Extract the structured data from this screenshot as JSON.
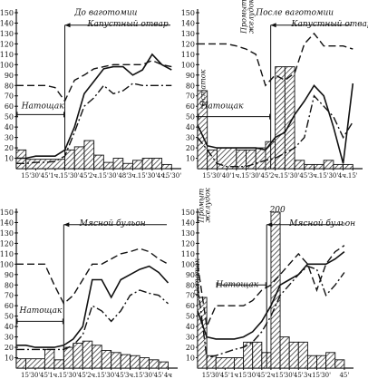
{
  "chart_data": [
    {
      "type": "bar",
      "ylim": [
        0,
        150
      ],
      "yticks": [
        10,
        20,
        30,
        40,
        50,
        60,
        70,
        80,
        90,
        100,
        110,
        120,
        130,
        140,
        150
      ],
      "ytick_labels": [
        "10",
        "20",
        "30",
        "40",
        "50",
        "60",
        "70",
        "80",
        "90",
        "100",
        "110",
        "120",
        "130",
        "140",
        "150"
      ],
      "xticks": [
        15,
        30,
        45,
        60,
        75,
        90,
        105,
        120,
        135,
        150,
        165,
        180,
        195,
        210,
        225,
        240
      ],
      "xtick_labels": [
        "15'",
        "30'",
        "45'",
        "1ч.",
        "15'",
        "30'",
        "45'",
        "2ч.",
        "15'",
        "30'",
        "48'",
        "3ч.",
        "15'",
        "30'",
        "4ч.",
        "15'30'"
      ],
      "xlim": [
        0,
        255
      ],
      "annotations": [
        {
          "text": "До ваготомии",
          "x": 90,
          "y": 148
        },
        {
          "text": "Капустный отвар",
          "x": 110,
          "y": 137
        },
        {
          "text": "Натощак",
          "x": 8,
          "y": 58
        }
      ],
      "stimulus_x": 75,
      "fast_bracket": [
        0,
        75,
        52
      ],
      "bars": [
        {
          "x0": 0,
          "x1": 15,
          "value": 18
        },
        {
          "x0": 15,
          "x1": 75,
          "value": 9
        },
        {
          "x0": 75,
          "x1": 90,
          "value": 18
        },
        {
          "x0": 90,
          "x1": 105,
          "value": 21
        },
        {
          "x0": 105,
          "x1": 120,
          "value": 27
        },
        {
          "x0": 120,
          "x1": 135,
          "value": 13
        },
        {
          "x0": 135,
          "x1": 150,
          "value": 6
        },
        {
          "x0": 150,
          "x1": 165,
          "value": 10
        },
        {
          "x0": 165,
          "x1": 180,
          "value": 5
        },
        {
          "x0": 180,
          "x1": 195,
          "value": 8
        },
        {
          "x0": 195,
          "x1": 210,
          "value": 10
        },
        {
          "x0": 210,
          "x1": 225,
          "value": 10
        },
        {
          "x0": 225,
          "x1": 240,
          "value": 4
        }
      ],
      "series": [
        {
          "style": "dashed",
          "x": [
            0,
            15,
            30,
            45,
            60,
            75,
            90,
            105,
            120,
            135,
            150,
            165,
            180,
            195,
            210,
            225,
            240
          ],
          "values": [
            80,
            80,
            80,
            80,
            78,
            65,
            85,
            90,
            96,
            98,
            100,
            100,
            100,
            100,
            104,
            100,
            98
          ]
        },
        {
          "style": "solid",
          "x": [
            0,
            15,
            30,
            45,
            60,
            75,
            90,
            105,
            120,
            135,
            150,
            165,
            180,
            195,
            210,
            225,
            240
          ],
          "values": [
            10,
            10,
            12,
            12,
            12,
            18,
            40,
            72,
            84,
            96,
            98,
            98,
            90,
            95,
            110,
            100,
            95
          ]
        },
        {
          "style": "dashdot",
          "x": [
            0,
            15,
            30,
            45,
            60,
            75,
            90,
            105,
            120,
            135,
            150,
            165,
            180,
            195,
            210,
            225,
            240
          ],
          "values": [
            5,
            5,
            6,
            6,
            7,
            12,
            35,
            60,
            68,
            80,
            72,
            75,
            82,
            80,
            80,
            80,
            80
          ]
        }
      ]
    },
    {
      "type": "bar",
      "ylim": [
        0,
        150
      ],
      "yticks": [
        10,
        20,
        30,
        40,
        50,
        60,
        70,
        80,
        90,
        100,
        110,
        120,
        130,
        140,
        150
      ],
      "ytick_labels": [
        "10",
        "20",
        "30",
        "40",
        "50",
        "60",
        "70",
        "80",
        "90",
        "100",
        "110",
        "120",
        "130",
        "140",
        "150"
      ],
      "xticks": [
        15,
        30,
        45,
        60,
        75,
        90,
        105,
        120,
        135,
        150,
        165,
        180,
        195,
        210,
        225,
        240
      ],
      "xtick_labels": [
        "15'",
        "30'",
        "40'",
        "1ч.",
        "15'",
        "30'",
        "45'",
        "2ч.",
        "15'",
        "30'",
        "45'",
        "3ч.",
        "15'",
        "30'",
        "4ч.",
        "15'"
      ],
      "xlim": [
        0,
        255
      ],
      "annotations": [
        {
          "text": "После ваготомии",
          "x": 90,
          "y": 148
        },
        {
          "text": "Капустный отвар",
          "x": 145,
          "y": 137
        },
        {
          "text": "Натощак",
          "x": 5,
          "y": 58
        },
        {
          "text": "Остаток",
          "x": 12,
          "y": 60,
          "rotate": -90
        },
        {
          "text": "Промыт",
          "x": 75,
          "y": 130,
          "rotate": -90
        },
        {
          "text": "желудок",
          "x": 86,
          "y": 130,
          "rotate": -90
        }
      ],
      "stimulus_x": 113,
      "fast_bracket": [
        0,
        113,
        50
      ],
      "bars": [
        {
          "x0": 0,
          "x1": 15,
          "value": 75
        },
        {
          "x0": 15,
          "x1": 30,
          "value": 18
        },
        {
          "x0": 30,
          "x1": 60,
          "value": 20
        },
        {
          "x0": 60,
          "x1": 75,
          "value": 18
        },
        {
          "x0": 75,
          "x1": 90,
          "value": 18
        },
        {
          "x0": 90,
          "x1": 105,
          "value": 20
        },
        {
          "x0": 105,
          "x1": 120,
          "value": 26
        },
        {
          "x0": 120,
          "x1": 135,
          "value": 98
        },
        {
          "x0": 135,
          "x1": 150,
          "value": 98
        },
        {
          "x0": 150,
          "x1": 165,
          "value": 8
        },
        {
          "x0": 165,
          "x1": 180,
          "value": 4
        },
        {
          "x0": 180,
          "x1": 195,
          "value": 4
        },
        {
          "x0": 195,
          "x1": 210,
          "value": 8
        },
        {
          "x0": 210,
          "x1": 225,
          "value": 4
        },
        {
          "x0": 225,
          "x1": 240,
          "value": 4
        }
      ],
      "series": [
        {
          "style": "dashed",
          "x": [
            0,
            15,
            30,
            45,
            60,
            75,
            90,
            105,
            120,
            135,
            150,
            165,
            180,
            195,
            210,
            225,
            240
          ],
          "values": [
            120,
            120,
            120,
            120,
            118,
            115,
            110,
            80,
            90,
            85,
            92,
            120,
            130,
            118,
            118,
            118,
            115
          ]
        },
        {
          "style": "solid",
          "x": [
            0,
            15,
            30,
            45,
            60,
            75,
            90,
            105,
            120,
            135,
            150,
            165,
            180,
            195,
            210,
            225,
            240
          ],
          "values": [
            42,
            22,
            20,
            20,
            20,
            20,
            20,
            18,
            30,
            35,
            52,
            65,
            80,
            70,
            40,
            5,
            82
          ]
        },
        {
          "style": "dashdot",
          "x": [
            0,
            15,
            30,
            45,
            60,
            75,
            90,
            105,
            120,
            135,
            150,
            165,
            180,
            195,
            210,
            225,
            240
          ],
          "values": [
            30,
            18,
            5,
            2,
            2,
            2,
            5,
            8,
            10,
            15,
            20,
            30,
            70,
            60,
            50,
            30,
            45
          ]
        }
      ]
    },
    {
      "type": "bar",
      "ylim": [
        0,
        150
      ],
      "yticks": [
        10,
        20,
        30,
        40,
        50,
        60,
        70,
        80,
        90,
        100,
        110,
        120,
        130,
        140,
        150
      ],
      "ytick_labels": [
        "10",
        "20",
        "30",
        "40",
        "50",
        "60",
        "70",
        "80",
        "90",
        "100",
        "110",
        "120",
        "130",
        "140",
        "150"
      ],
      "xticks": [
        15,
        30,
        45,
        60,
        75,
        90,
        105,
        120,
        135,
        150,
        165,
        180,
        195,
        210,
        225,
        240
      ],
      "xtick_labels": [
        "15'",
        "30'",
        "45'",
        "1ч.",
        "15'",
        "30'",
        "45'",
        "2ч.",
        "15'",
        "30'",
        "45'",
        "3ч.",
        "15'",
        "30'",
        "45'",
        "4ч"
      ],
      "xlim": [
        0,
        255
      ],
      "annotations": [
        {
          "text": "Мясной бульон",
          "x": 100,
          "y": 137
        },
        {
          "text": "Натощак",
          "x": 5,
          "y": 53
        }
      ],
      "stimulus_x": 75,
      "fast_bracket": [
        0,
        75,
        45
      ],
      "bars": [
        {
          "x0": 0,
          "x1": 15,
          "value": 9
        },
        {
          "x0": 15,
          "x1": 45,
          "value": 9
        },
        {
          "x0": 45,
          "x1": 60,
          "value": 18
        },
        {
          "x0": 60,
          "x1": 75,
          "value": 8
        },
        {
          "x0": 75,
          "x1": 90,
          "value": 20
        },
        {
          "x0": 90,
          "x1": 105,
          "value": 24
        },
        {
          "x0": 105,
          "x1": 120,
          "value": 26
        },
        {
          "x0": 120,
          "x1": 135,
          "value": 22
        },
        {
          "x0": 135,
          "x1": 150,
          "value": 17
        },
        {
          "x0": 150,
          "x1": 165,
          "value": 15
        },
        {
          "x0": 165,
          "x1": 180,
          "value": 13
        },
        {
          "x0": 180,
          "x1": 195,
          "value": 12
        },
        {
          "x0": 195,
          "x1": 210,
          "value": 10
        },
        {
          "x0": 210,
          "x1": 225,
          "value": 8
        },
        {
          "x0": 225,
          "x1": 240,
          "value": 6
        }
      ],
      "series": [
        {
          "style": "dashed",
          "x": [
            0,
            15,
            30,
            45,
            60,
            75,
            90,
            105,
            120,
            135,
            150,
            165,
            180,
            195,
            210,
            225,
            240
          ],
          "values": [
            100,
            100,
            100,
            100,
            80,
            62,
            70,
            85,
            100,
            100,
            105,
            110,
            112,
            115,
            112,
            105,
            100
          ]
        },
        {
          "style": "solid",
          "x": [
            0,
            15,
            30,
            45,
            60,
            75,
            90,
            105,
            120,
            135,
            150,
            165,
            180,
            195,
            210,
            225,
            240
          ],
          "values": [
            22,
            22,
            20,
            20,
            20,
            22,
            28,
            40,
            85,
            85,
            68,
            85,
            90,
            95,
            98,
            92,
            82
          ]
        },
        {
          "style": "dashdot",
          "x": [
            0,
            15,
            30,
            45,
            60,
            75,
            90,
            105,
            120,
            135,
            150,
            165,
            180,
            195,
            210,
            225,
            240
          ],
          "values": [
            18,
            18,
            18,
            18,
            18,
            18,
            22,
            32,
            60,
            55,
            45,
            55,
            70,
            75,
            72,
            70,
            62
          ]
        }
      ]
    },
    {
      "type": "bar",
      "ylim": [
        0,
        150
      ],
      "yticks": [
        10,
        20,
        30,
        40,
        50,
        60,
        70,
        80,
        90,
        100,
        110,
        120,
        130,
        140,
        150
      ],
      "ytick_labels": [
        "10",
        "20",
        "30",
        "40",
        "50",
        "60",
        "70",
        "80",
        "90",
        "100",
        "110",
        "120",
        "130",
        "140",
        "150"
      ],
      "xticks": [
        15,
        30,
        45,
        60,
        75,
        90,
        105,
        120,
        135,
        150,
        165,
        180,
        195,
        210,
        225,
        240
      ],
      "xtick_labels": [
        "15'",
        "30'",
        "45'",
        "1ч",
        "15'",
        "30'",
        "45'",
        "2ч",
        "15'",
        "30'",
        "45'",
        "3ч",
        "15'",
        "30'",
        "",
        "45'"
      ],
      "xlim": [
        0,
        255
      ],
      "annotations": [
        {
          "text": "Мясной бульон",
          "x": 150,
          "y": 137
        },
        {
          "text": "Натощак",
          "x": 30,
          "y": 78
        },
        {
          "text": "200",
          "x": 118,
          "y": 150
        },
        {
          "text": "Остаток",
          "x": 3,
          "y": 70,
          "rotate": -90
        },
        {
          "text": "Промыт",
          "x": 10,
          "y": 140,
          "rotate": -90
        },
        {
          "text": "желудок",
          "x": 20,
          "y": 140,
          "rotate": -90
        }
      ],
      "stimulus_x": 113,
      "fast_bracket": [
        30,
        113,
        80
      ],
      "bars": [
        {
          "x0": 0,
          "x1": 15,
          "value": 68
        },
        {
          "x0": 15,
          "x1": 30,
          "value": 12
        },
        {
          "x0": 30,
          "x1": 60,
          "value": 10
        },
        {
          "x0": 60,
          "x1": 75,
          "value": 10
        },
        {
          "x0": 75,
          "x1": 90,
          "value": 25
        },
        {
          "x0": 90,
          "x1": 105,
          "value": 25
        },
        {
          "x0": 105,
          "x1": 120,
          "value": 15
        },
        {
          "x0": 120,
          "x1": 135,
          "value": 150
        },
        {
          "x0": 135,
          "x1": 150,
          "value": 30
        },
        {
          "x0": 150,
          "x1": 165,
          "value": 25
        },
        {
          "x0": 165,
          "x1": 180,
          "value": 25
        },
        {
          "x0": 180,
          "x1": 195,
          "value": 12
        },
        {
          "x0": 195,
          "x1": 210,
          "value": 12
        },
        {
          "x0": 210,
          "x1": 225,
          "value": 15
        },
        {
          "x0": 225,
          "x1": 240,
          "value": 8
        }
      ],
      "series": [
        {
          "style": "dashed",
          "x": [
            0,
            15,
            30,
            45,
            60,
            75,
            90,
            105,
            120,
            135,
            150,
            165,
            180,
            195,
            210,
            225,
            240
          ],
          "values": [
            100,
            40,
            60,
            60,
            60,
            60,
            65,
            75,
            80,
            90,
            100,
            110,
            100,
            75,
            100,
            112,
            118
          ]
        },
        {
          "style": "solid",
          "x": [
            0,
            15,
            30,
            45,
            60,
            75,
            90,
            105,
            120,
            135,
            150,
            165,
            180,
            195,
            210,
            225,
            240
          ],
          "values": [
            55,
            30,
            28,
            28,
            28,
            30,
            35,
            45,
            60,
            80,
            85,
            90,
            100,
            100,
            100,
            105,
            112
          ]
        },
        {
          "style": "dashdot",
          "x": [
            0,
            15,
            30,
            45,
            60,
            75,
            90,
            105,
            120,
            135,
            150,
            165,
            180,
            195,
            210,
            225,
            240
          ],
          "values": [
            80,
            10,
            12,
            15,
            18,
            20,
            25,
            35,
            50,
            70,
            80,
            90,
            98,
            95,
            70,
            80,
            92
          ]
        }
      ]
    }
  ]
}
